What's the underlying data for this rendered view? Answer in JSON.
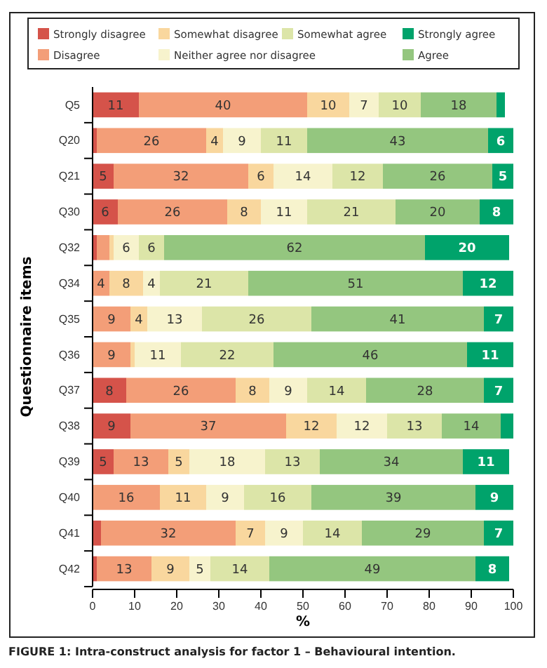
{
  "chart_data": {
    "type": "bar",
    "orientation": "horizontal",
    "stacked": true,
    "xlabel": "%",
    "ylabel": "Questionnaire items",
    "legend": "top",
    "grid": false,
    "categories": [
      "Q5",
      "Q20",
      "Q21",
      "Q30",
      "Q32",
      "Q34",
      "Q35",
      "Q36",
      "Q37",
      "Q38",
      "Q39",
      "Q40",
      "Q41",
      "Q42"
    ],
    "xlim": [
      0,
      100
    ],
    "xticks": [
      0,
      10,
      20,
      30,
      40,
      50,
      60,
      70,
      80,
      90,
      100
    ],
    "series": [
      {
        "name": "Strongly disagree",
        "color": "#d5534a",
        "values": [
          11,
          1,
          5,
          6,
          1,
          0,
          0,
          0,
          8,
          9,
          5,
          0,
          2,
          1
        ],
        "value_labels": [
          "11",
          null,
          "5",
          "6",
          null,
          null,
          null,
          null,
          "8",
          "9",
          "5",
          null,
          null,
          null
        ]
      },
      {
        "name": "Disagree",
        "color": "#f39e78",
        "values": [
          40,
          26,
          32,
          26,
          3,
          4,
          9,
          9,
          26,
          37,
          13,
          16,
          32,
          13
        ],
        "value_labels": [
          "40",
          "26",
          "32",
          "26",
          null,
          "4",
          "9",
          "9",
          "26",
          "37",
          "13",
          "16",
          "32",
          "13"
        ]
      },
      {
        "name": "Somewhat disagree",
        "color": "#f9d79e",
        "values": [
          10,
          4,
          6,
          8,
          1,
          8,
          4,
          1,
          8,
          12,
          5,
          11,
          7,
          9
        ],
        "value_labels": [
          "10",
          "4",
          "6",
          "8",
          null,
          "8",
          "4",
          null,
          "8",
          "12",
          "5",
          "11",
          "7",
          "9"
        ]
      },
      {
        "name": "Neither agree nor disagree",
        "color": "#f7f3cd",
        "values": [
          7,
          9,
          14,
          11,
          6,
          4,
          13,
          11,
          9,
          12,
          18,
          9,
          9,
          5
        ],
        "value_labels": [
          "7",
          "9",
          "14",
          "11",
          "6",
          "4",
          "13",
          "11",
          "9",
          "12",
          "18",
          "9",
          "9",
          "5"
        ]
      },
      {
        "name": "Somewhat agree",
        "color": "#dce5a8",
        "values": [
          10,
          11,
          12,
          21,
          6,
          21,
          26,
          22,
          14,
          13,
          13,
          16,
          14,
          14
        ],
        "value_labels": [
          "10",
          "11",
          "12",
          "21",
          "6",
          "21",
          "26",
          "22",
          "14",
          "13",
          "13",
          "16",
          "14",
          "14"
        ]
      },
      {
        "name": "Agree",
        "color": "#94c67f",
        "values": [
          18,
          43,
          26,
          20,
          62,
          51,
          41,
          46,
          28,
          14,
          34,
          39,
          29,
          49
        ],
        "value_labels": [
          "18",
          "43",
          "26",
          "20",
          "62",
          "51",
          "41",
          "46",
          "28",
          "14",
          "34",
          "39",
          "29",
          "49"
        ]
      },
      {
        "name": "Strongly agree",
        "color": "#00a36b",
        "values": [
          2,
          6,
          5,
          8,
          20,
          12,
          7,
          11,
          7,
          3,
          11,
          9,
          7,
          8
        ],
        "value_labels": [
          null,
          "6",
          "5",
          "8",
          "20",
          "12",
          "7",
          "11",
          "7",
          null,
          "11",
          "9",
          "7",
          "8"
        ]
      }
    ],
    "annotations": [
      "FIGURE 1: Intra-construct analysis for factor 1 – Behavioural intention."
    ]
  }
}
